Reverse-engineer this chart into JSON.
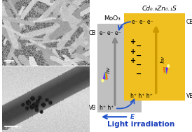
{
  "fig_width": 2.74,
  "fig_height": 1.89,
  "dpi": 100,
  "bg_color": "#ffffff",
  "sem_label": "1μm",
  "tem_label": "100 nm",
  "moo3_label": "MoO₃",
  "cdzns_label": "Cd₀.₉Zn₀.₁S",
  "moo3_box_color": "#c0c0c0",
  "cdzns_box_color": "#f0c020",
  "electrons_moo3": "e⁻ e⁻ e⁻",
  "electrons_cdzns": "e⁻ e⁻ e⁻",
  "holes_moo3": "h⁺ h⁺",
  "holes_cdzns": "h⁺ h⁺ h⁺",
  "electric_field_label": "E",
  "light_label": "Light irradiation",
  "light_color": "#1a3fbb",
  "arrow_color": "#2255cc",
  "gray_arrow_color": "#888888",
  "gold_arrow_color": "#cc9900"
}
